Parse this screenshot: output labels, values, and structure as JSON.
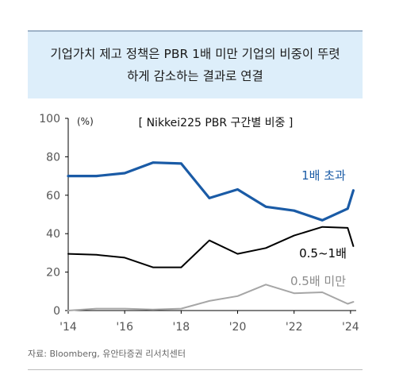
{
  "headline": {
    "line1": "기업가치 제고 정책은 PBR 1배 미만 기업의 비중이 뚜렷",
    "line2": "하게 감소하는 결과로 연결"
  },
  "source": "자료: Bloomberg, 유안타증권 리서치센터",
  "colors": {
    "series_blue": "#1a5ba6",
    "series_black": "#000000",
    "series_gray": "#a6a6a6",
    "axis": "#000000",
    "label_gray": "#555555"
  },
  "chart_data": {
    "type": "line",
    "title": "[ Nikkei225 PBR 구간별 비중 ]",
    "unit_label": "(%)",
    "ylim": [
      0,
      100
    ],
    "yticks": [
      0,
      20,
      40,
      60,
      80,
      100
    ],
    "xlim": [
      2014,
      2024.2
    ],
    "xticks": [
      "'14",
      "'16",
      "'18",
      "'20",
      "'22",
      "'24"
    ],
    "xtick_values": [
      2014,
      2016,
      2018,
      2020,
      2022,
      2024
    ],
    "grid": false,
    "series": [
      {
        "name": "1배 초과",
        "x": [
          2014,
          2015,
          2016,
          2017,
          2018,
          2019,
          2020,
          2021,
          2022,
          2023,
          2023.9,
          2024.1
        ],
        "y": [
          70,
          70,
          71.5,
          77,
          76.5,
          58.5,
          63,
          54,
          52,
          47,
          53,
          62.5
        ]
      },
      {
        "name": "0.5~1배",
        "x": [
          2014,
          2015,
          2016,
          2017,
          2018,
          2019,
          2020,
          2021,
          2022,
          2023,
          2023.9,
          2024.1
        ],
        "y": [
          29.5,
          29,
          27.5,
          22.5,
          22.5,
          36.5,
          29.5,
          32.5,
          39,
          43.5,
          43,
          33.5
        ]
      },
      {
        "name": "0.5배 미만",
        "x": [
          2014,
          2015,
          2016,
          2017,
          2018,
          2019,
          2020,
          2021,
          2022,
          2023,
          2023.9,
          2024.1
        ],
        "y": [
          0,
          1,
          1,
          0.5,
          1,
          5,
          7.5,
          13.5,
          9,
          9.5,
          3.5,
          4.5
        ]
      }
    ]
  }
}
